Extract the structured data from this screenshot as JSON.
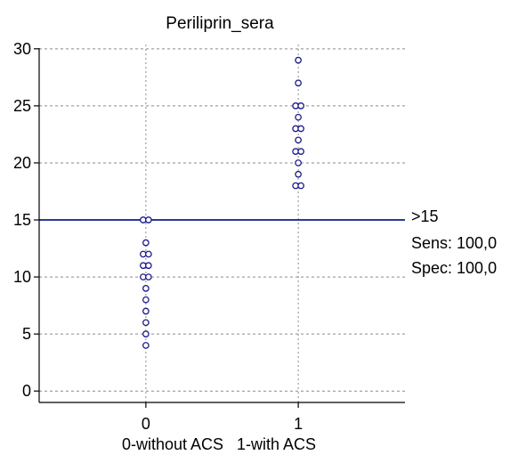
{
  "chart_data": {
    "type": "scatter",
    "title": "Periliprin_sera",
    "xlabel": "0-without ACS   1-with ACS",
    "ylabel": "",
    "categories": [
      "0",
      "1"
    ],
    "xlim": [
      -0.7,
      1.7
    ],
    "ylim": [
      -1,
      31
    ],
    "yticks": [
      0,
      5,
      10,
      15,
      20,
      25,
      30
    ],
    "grid": true,
    "colors": {
      "points": "#1a1a8c",
      "cutoff_line": "#2a3a9a",
      "grid": "#8a8a8a"
    },
    "series": [
      {
        "x": 0,
        "values": [
          15,
          15,
          13,
          12,
          12,
          11,
          11,
          10,
          10,
          9,
          8,
          7,
          6,
          5,
          4
        ]
      },
      {
        "x": 1,
        "values": [
          29,
          27,
          25,
          25,
          24,
          23,
          23,
          22,
          21,
          21,
          20,
          19,
          18,
          18
        ]
      }
    ],
    "cutoff": {
      "value": 15,
      "label": ">15",
      "sens": "Sens: 100,0",
      "spec": "Spec: 100,0"
    }
  }
}
